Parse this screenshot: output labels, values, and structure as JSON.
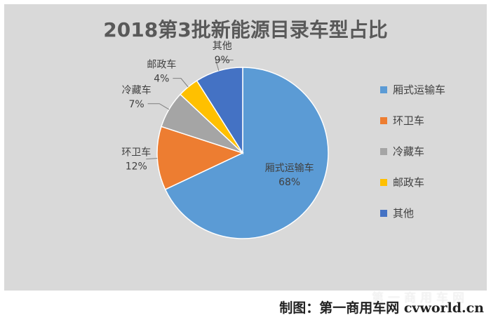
{
  "chart_data": {
    "type": "pie",
    "title": "2018第3批新能源目录车型占比",
    "slices": [
      {
        "label": "厢式运输车",
        "value": 68,
        "pct_label": "68%",
        "color": "#5b9bd5"
      },
      {
        "label": "环卫车",
        "value": 12,
        "pct_label": "12%",
        "color": "#ed7d31"
      },
      {
        "label": "冷藏车",
        "value": 7,
        "pct_label": "7%",
        "color": "#a5a5a5"
      },
      {
        "label": "邮政车",
        "value": 4,
        "pct_label": "4%",
        "color": "#ffc000"
      },
      {
        "label": "其他",
        "value": 9,
        "pct_label": "9%",
        "color": "#4472c4"
      }
    ],
    "legend_position": "right",
    "background": "#d9d9d9"
  },
  "footer": {
    "credit": "制图：第一商用车网 cvworld.cn",
    "watermark": "第一商用车网"
  }
}
